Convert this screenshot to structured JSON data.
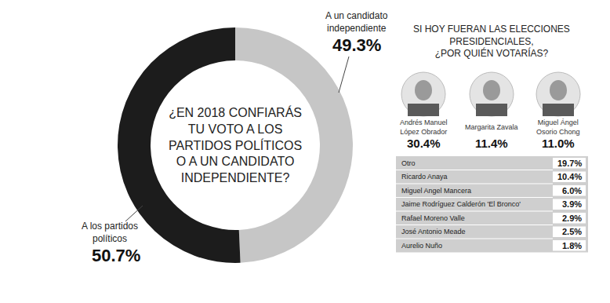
{
  "chart_data": {
    "type": "pie",
    "title": "¿EN 2018 CONFIARÁS TU VOTO A LOS PARTIDOS POLÍTICOS O A UN CANDIDATO INDEPENDIENTE?",
    "categories": [
      "A un candidato independiente",
      "A los partidos políticos"
    ],
    "values": [
      49.3,
      50.7
    ],
    "value_labels": [
      "49.3%",
      "50.7%"
    ],
    "colors": [
      "#c6c6c6",
      "#1c1c1c"
    ],
    "data_labels": true
  },
  "poll": {
    "title": "SI HOY FUERAN LAS ELECCIONES PRESIDENCIALES, ¿POR QUIÉN VOTARÍAS?",
    "featured": [
      {
        "name": "Andrés Manuel López Obrador",
        "value": "30.4%"
      },
      {
        "name": "Margarita Zavala",
        "value": "11.4%"
      },
      {
        "name": "Miguel Ángel Osorio Chong",
        "value": "11.0%"
      }
    ],
    "table": {
      "rows": [
        [
          "Otro",
          "19.7%"
        ],
        [
          "Ricardo Anaya",
          "10.4%"
        ],
        [
          "Miguel Angel Mancera",
          "6.0%"
        ],
        [
          "Jaime Rodríguez Calderón 'El Bronco'",
          "3.9%"
        ],
        [
          "Rafael Moreno Valle",
          "2.9%"
        ],
        [
          "José Antonio Meade",
          "2.5%"
        ],
        [
          "Aurelio Nuño",
          "1.8%"
        ]
      ]
    }
  }
}
